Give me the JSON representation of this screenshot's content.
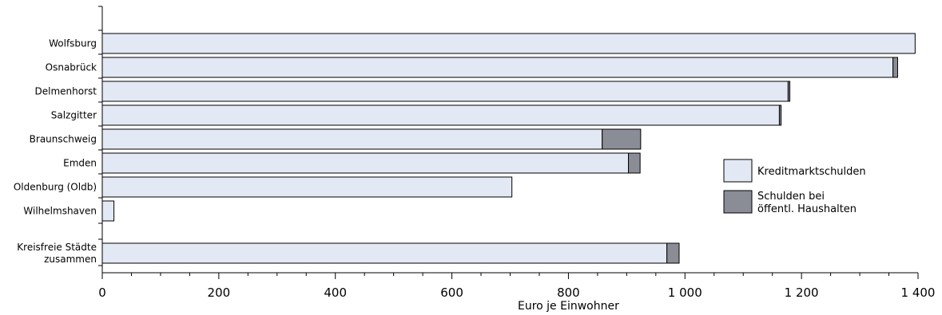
{
  "chart_data": {
    "type": "bar",
    "orientation": "horizontal",
    "stacked": true,
    "xlabel": "Euro  je Einwohner",
    "xlim": [
      0,
      1400
    ],
    "xticks": [
      0,
      200,
      400,
      600,
      800,
      1000,
      1200,
      1400
    ],
    "xtick_labels": [
      "0",
      "200",
      "400",
      "600",
      "800",
      "1 000",
      "1 200",
      "1 400"
    ],
    "grid": false,
    "legend_position": "right",
    "categories": [
      [
        "Wolfsburg"
      ],
      [
        "Osnabrück"
      ],
      [
        "Delmenhorst"
      ],
      [
        "Salzgitter"
      ],
      [
        "Braunschweig"
      ],
      [
        "Emden"
      ],
      [
        "Oldenburg (Oldb)"
      ],
      [
        "Wilhelmshaven"
      ],
      [
        "Kreisfreie Städte",
        "zusammen"
      ]
    ],
    "series": [
      {
        "name": [
          "Kreditmarktschulden"
        ],
        "color": "#e3e9f4",
        "values": [
          1395,
          1357,
          1177,
          1162,
          858,
          903,
          703,
          20,
          969
        ]
      },
      {
        "name": [
          "Schulden bei",
          "öffentl. Haushalten"
        ],
        "color": "#8a8c96",
        "values": [
          0,
          8,
          3,
          3,
          66,
          20,
          0,
          0,
          21
        ]
      }
    ]
  }
}
